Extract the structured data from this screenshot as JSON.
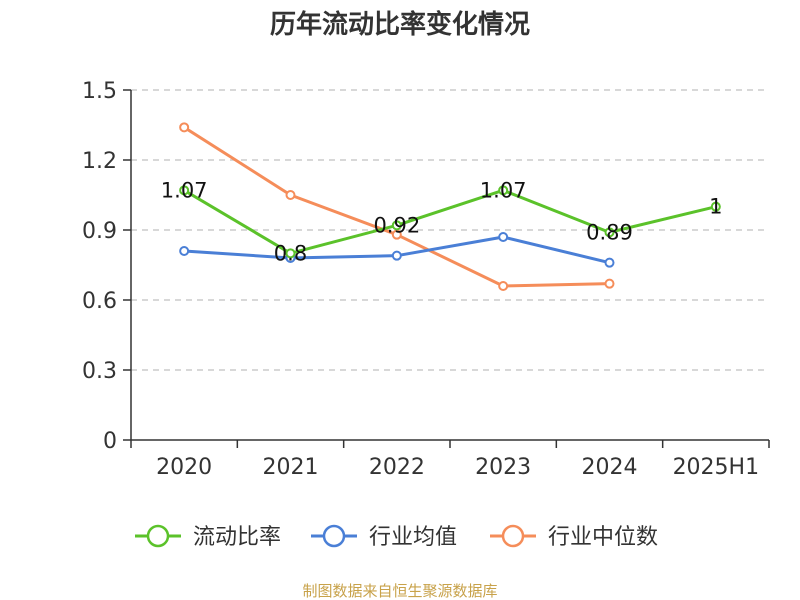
{
  "chart_data": {
    "type": "line",
    "title": "历年流动比率变化情况",
    "categories": [
      "2020",
      "2021",
      "2022",
      "2023",
      "2024",
      "2025H1"
    ],
    "ylim": [
      0,
      1.5
    ],
    "yticks": [
      "0",
      "0.3",
      "0.6",
      "0.9",
      "1.2",
      "1.5"
    ],
    "grid": true,
    "legend_position": "bottom",
    "series": [
      {
        "name": "流动比率",
        "color": "#5bc22a",
        "values": [
          1.07,
          0.8,
          0.92,
          1.07,
          0.89,
          1.0
        ],
        "labels": [
          "1.07",
          "0.8",
          "0.92",
          "1.07",
          "0.89",
          "1"
        ]
      },
      {
        "name": "行业均值",
        "color": "#4a7fd6",
        "values": [
          0.81,
          0.78,
          0.79,
          0.87,
          0.76,
          null
        ]
      },
      {
        "name": "行业中位数",
        "color": "#f58d5a",
        "values": [
          1.34,
          1.05,
          0.88,
          0.66,
          0.67,
          null
        ]
      }
    ]
  },
  "source_text": "制图数据来自恒生聚源数据库",
  "source_color": "#c8a24a"
}
